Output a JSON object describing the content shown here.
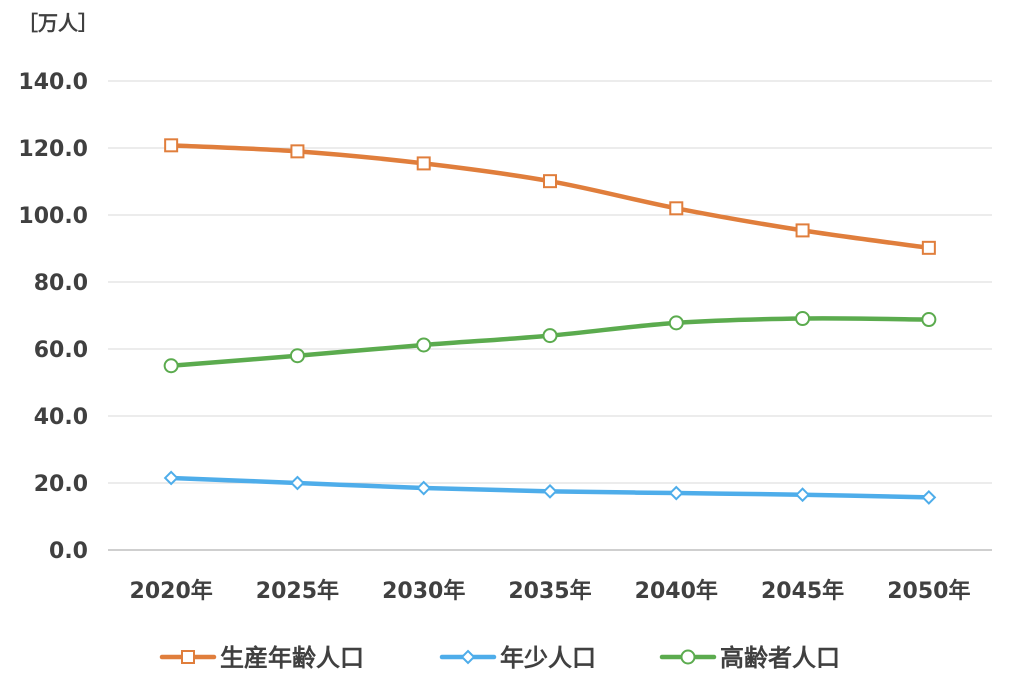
{
  "chart_data": {
    "type": "line",
    "unit_label": "［万人］",
    "categories": [
      "2020年",
      "2025年",
      "2030年",
      "2035年",
      "2040年",
      "2045年",
      "2050年"
    ],
    "y_ticks": [
      "0.0",
      "20.0",
      "40.0",
      "60.0",
      "80.0",
      "100.0",
      "120.0",
      "140.0"
    ],
    "ylim": [
      0,
      140
    ],
    "grid": true,
    "legend_position": "bottom",
    "series": [
      {
        "name": "生産年齢人口",
        "color": "#e07e3c",
        "marker": "square",
        "values": [
          120.8,
          119.0,
          115.4,
          110.1,
          102.0,
          95.4,
          90.2
        ]
      },
      {
        "name": "年少人口",
        "color": "#4eadea",
        "marker": "diamond",
        "values": [
          21.5,
          20.0,
          18.5,
          17.5,
          17.0,
          16.5,
          15.7
        ]
      },
      {
        "name": "高齢者人口",
        "color": "#5bab4e",
        "marker": "circle",
        "values": [
          55.0,
          58.0,
          61.2,
          64.0,
          67.8,
          69.1,
          68.8
        ]
      }
    ]
  }
}
